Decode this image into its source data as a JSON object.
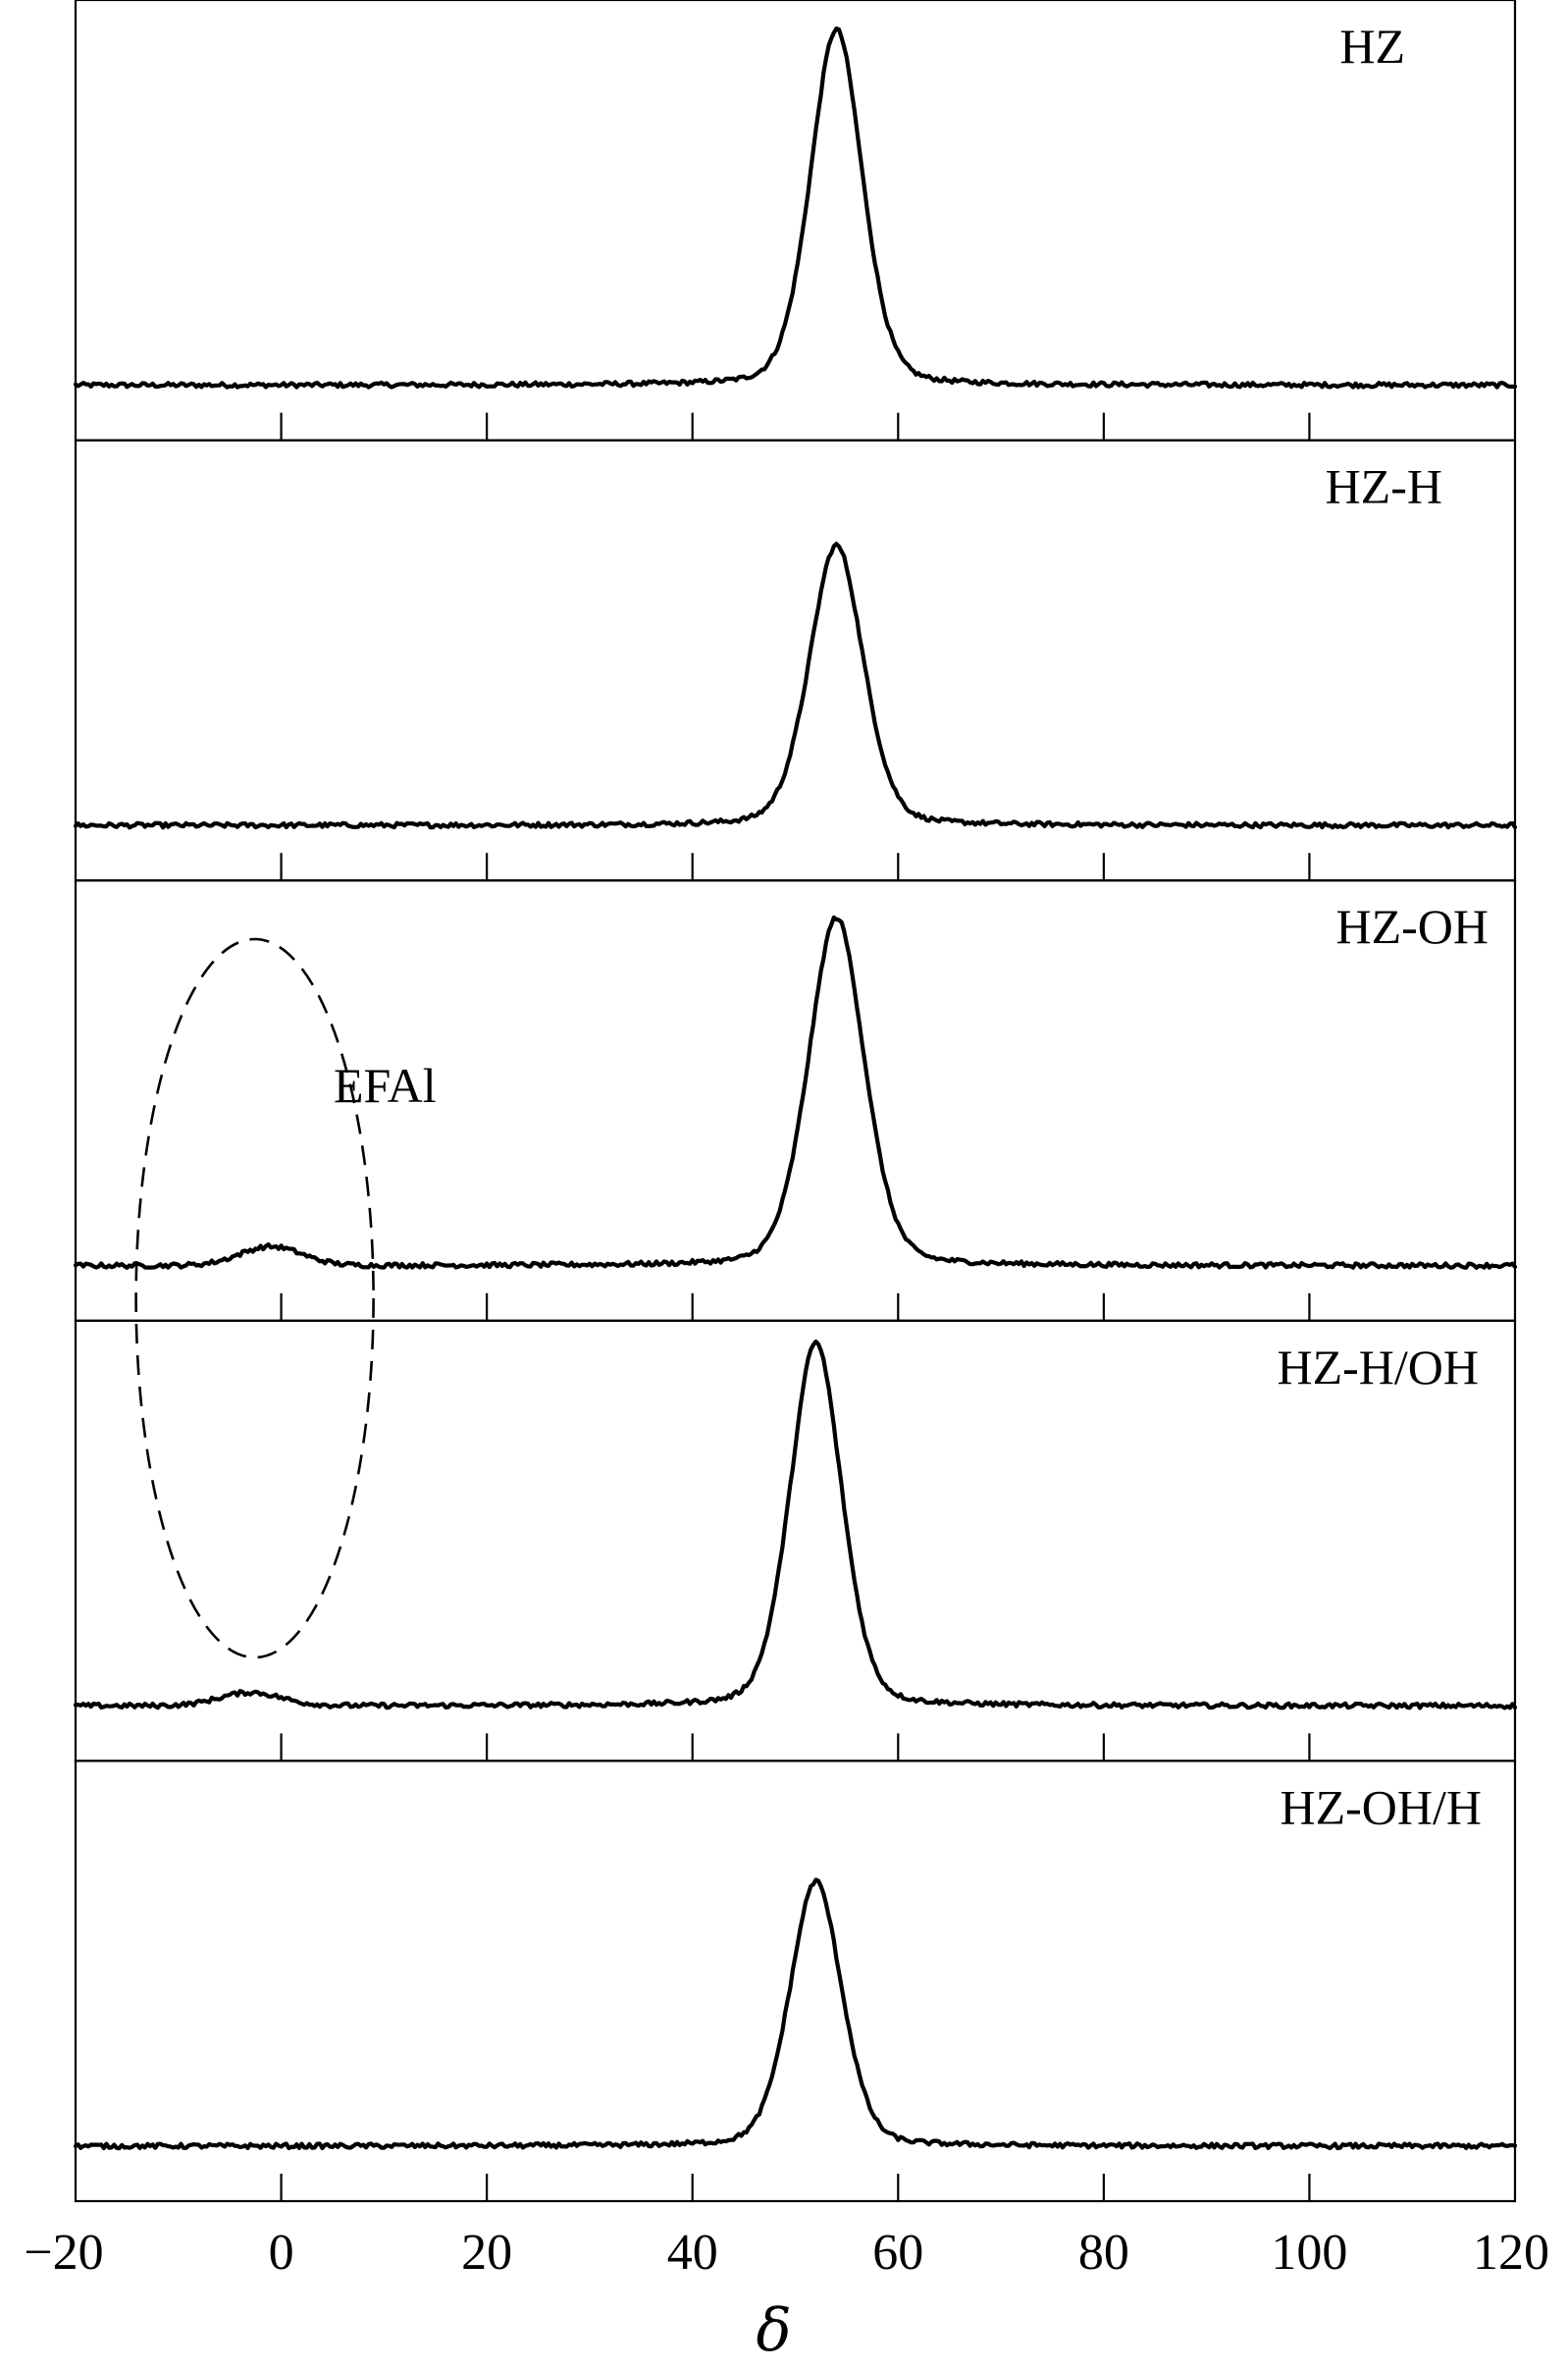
{
  "chart_data": {
    "type": "line",
    "xlabel": "δ",
    "xlim": [
      -20,
      120
    ],
    "x_ticks": [
      -20,
      0,
      20,
      40,
      60,
      80,
      100,
      120
    ],
    "x_tick_labels": [
      "−20",
      "0",
      "20",
      "40",
      "60",
      "80",
      "100",
      "120"
    ],
    "grid": false,
    "series": [
      {
        "name": "HZ",
        "peak_center": 54,
        "peak_height": 0.94,
        "peak_width": 2.6,
        "baseline": 0.02,
        "bumps": []
      },
      {
        "name": "HZ-H",
        "peak_center": 54,
        "peak_height": 0.74,
        "peak_width": 2.7,
        "baseline": 0.02,
        "bumps": []
      },
      {
        "name": "HZ-OH",
        "peak_center": 54,
        "peak_height": 0.92,
        "peak_width": 2.8,
        "baseline": 0.02,
        "bumps": [
          {
            "center": -1,
            "height": 0.05,
            "width": 3
          }
        ]
      },
      {
        "name": "HZ-H/OH",
        "peak_center": 52,
        "peak_height": 0.96,
        "peak_width": 2.6,
        "baseline": 0.02,
        "bumps": [
          {
            "center": -3,
            "height": 0.035,
            "width": 3
          }
        ]
      },
      {
        "name": "HZ-OH/H",
        "peak_center": 52,
        "peak_height": 0.7,
        "peak_width": 2.6,
        "baseline": 0.02,
        "bumps": []
      }
    ],
    "annotations": [
      {
        "text": "EFAl",
        "target_x": -2
      }
    ]
  }
}
